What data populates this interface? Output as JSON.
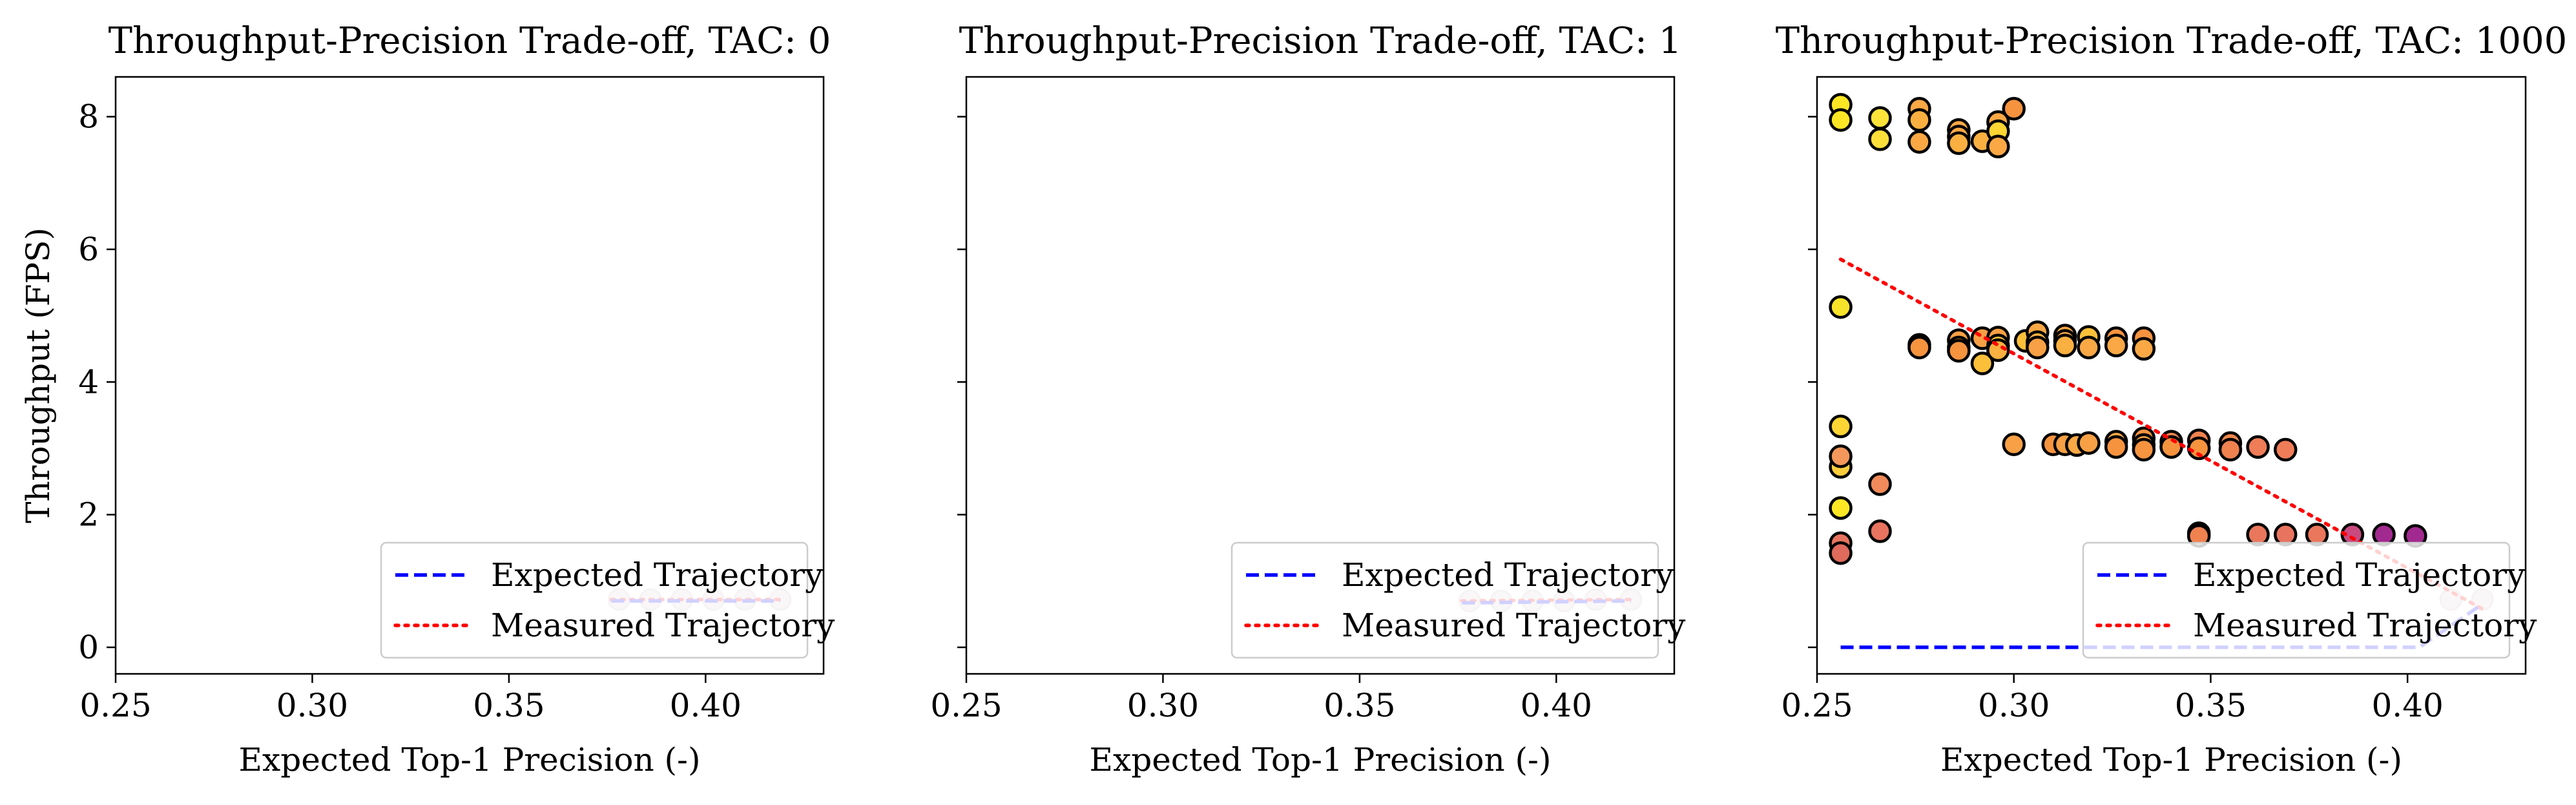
{
  "chart_data": [
    {
      "type": "scatter",
      "title": "Throughput-Precision Trade-off, TAC: 0",
      "xlabel": "Expected Top-1 Precision (-)",
      "ylabel": "Throughput (FPS)",
      "xlim": [
        0.25,
        0.43
      ],
      "ylim": [
        -0.4,
        8.6
      ],
      "xticks": [
        "0.25",
        "0.30",
        "0.35",
        "0.40"
      ],
      "yticks": [
        "0",
        "2",
        "4",
        "6",
        "8"
      ],
      "show_yticklabels": true,
      "legend_placement": "lower-right",
      "legend": [
        "Expected Trajectory",
        "Measured Trajectory"
      ],
      "points": [
        {
          "x": 0.378,
          "y": 0.72
        },
        {
          "x": 0.386,
          "y": 0.72
        },
        {
          "x": 0.394,
          "y": 0.72
        },
        {
          "x": 0.402,
          "y": 0.72
        },
        {
          "x": 0.41,
          "y": 0.72
        },
        {
          "x": 0.419,
          "y": 0.72
        }
      ],
      "expected_trajectory": [
        [
          0.376,
          0.7
        ],
        [
          0.419,
          0.7
        ]
      ],
      "measured_trajectory": [
        [
          0.376,
          0.72
        ],
        [
          0.419,
          0.72
        ]
      ]
    },
    {
      "type": "scatter",
      "title": "Throughput-Precision Trade-off, TAC: 1",
      "xlabel": "Expected Top-1 Precision (-)",
      "ylabel": "",
      "xlim": [
        0.25,
        0.43
      ],
      "ylim": [
        -0.4,
        8.6
      ],
      "xticks": [
        "0.25",
        "0.30",
        "0.35",
        "0.40"
      ],
      "yticks": [
        "0",
        "2",
        "4",
        "6",
        "8"
      ],
      "show_yticklabels": false,
      "legend_placement": "lower-right",
      "legend": [
        "Expected Trajectory",
        "Measured Trajectory"
      ],
      "points": [
        {
          "x": 0.378,
          "y": 0.7
        },
        {
          "x": 0.386,
          "y": 0.7
        },
        {
          "x": 0.394,
          "y": 0.7
        },
        {
          "x": 0.402,
          "y": 0.7
        },
        {
          "x": 0.41,
          "y": 0.72
        },
        {
          "x": 0.419,
          "y": 0.72
        }
      ],
      "expected_trajectory": [
        [
          0.376,
          0.67
        ],
        [
          0.419,
          0.7
        ]
      ],
      "measured_trajectory": [
        [
          0.376,
          0.7
        ],
        [
          0.419,
          0.72
        ]
      ]
    },
    {
      "type": "scatter",
      "title": "Throughput-Precision Trade-off, TAC: 1000",
      "xlabel": "Expected Top-1 Precision (-)",
      "ylabel": "",
      "xlim": [
        0.25,
        0.43
      ],
      "ylim": [
        -0.4,
        8.6
      ],
      "xticks": [
        "0.25",
        "0.30",
        "0.35",
        "0.40"
      ],
      "yticks": [
        "0",
        "2",
        "4",
        "6",
        "8"
      ],
      "show_yticklabels": false,
      "legend_placement": "lower-right",
      "legend": [
        "Expected Trajectory",
        "Measured Trajectory"
      ],
      "points": [
        {
          "x": 0.256,
          "y": 8.18,
          "c": "#fde725"
        },
        {
          "x": 0.256,
          "y": 7.95,
          "c": "#fde725"
        },
        {
          "x": 0.256,
          "y": 5.13,
          "c": "#f9e32a"
        },
        {
          "x": 0.256,
          "y": 3.33,
          "c": "#fcd434"
        },
        {
          "x": 0.256,
          "y": 2.72,
          "c": "#fbcd3c"
        },
        {
          "x": 0.256,
          "y": 2.88,
          "c": "#f3975a"
        },
        {
          "x": 0.256,
          "y": 2.1,
          "c": "#fde725"
        },
        {
          "x": 0.256,
          "y": 1.57,
          "c": "#e8735f"
        },
        {
          "x": 0.256,
          "y": 1.42,
          "c": "#e06a5c"
        },
        {
          "x": 0.266,
          "y": 7.98,
          "c": "#fde23a"
        },
        {
          "x": 0.266,
          "y": 7.66,
          "c": "#fcde3a"
        },
        {
          "x": 0.266,
          "y": 2.46,
          "c": "#f08a5a"
        },
        {
          "x": 0.266,
          "y": 1.75,
          "c": "#e8735f"
        },
        {
          "x": 0.276,
          "y": 8.12,
          "c": "#f9a845"
        },
        {
          "x": 0.276,
          "y": 7.95,
          "c": "#f9b040"
        },
        {
          "x": 0.276,
          "y": 7.62,
          "c": "#f9a845"
        },
        {
          "x": 0.276,
          "y": 4.56,
          "c": "#f5933f"
        },
        {
          "x": 0.276,
          "y": 4.52,
          "c": "#f5933f"
        },
        {
          "x": 0.286,
          "y": 7.8,
          "c": "#f9a845"
        },
        {
          "x": 0.286,
          "y": 7.7,
          "c": "#f9a845"
        },
        {
          "x": 0.286,
          "y": 7.6,
          "c": "#f9b040"
        },
        {
          "x": 0.286,
          "y": 4.63,
          "c": "#f7a045"
        },
        {
          "x": 0.286,
          "y": 4.52,
          "c": "#f5933f"
        },
        {
          "x": 0.286,
          "y": 4.47,
          "c": "#f5933f"
        },
        {
          "x": 0.292,
          "y": 7.63,
          "c": "#f9b040"
        },
        {
          "x": 0.292,
          "y": 4.28,
          "c": "#fbbf3a"
        },
        {
          "x": 0.292,
          "y": 4.66,
          "c": "#f7a045"
        },
        {
          "x": 0.296,
          "y": 7.92,
          "c": "#f9a845"
        },
        {
          "x": 0.296,
          "y": 7.78,
          "c": "#fcd434"
        },
        {
          "x": 0.296,
          "y": 7.55,
          "c": "#f9a845"
        },
        {
          "x": 0.296,
          "y": 4.67,
          "c": "#f7a045"
        },
        {
          "x": 0.296,
          "y": 4.55,
          "c": "#fbbf3a"
        },
        {
          "x": 0.296,
          "y": 4.48,
          "c": "#f9b040"
        },
        {
          "x": 0.3,
          "y": 8.12,
          "c": "#f5933f"
        },
        {
          "x": 0.3,
          "y": 3.06,
          "c": "#f7a045"
        },
        {
          "x": 0.303,
          "y": 4.62,
          "c": "#fbbf3a"
        },
        {
          "x": 0.306,
          "y": 4.75,
          "c": "#f9a845"
        },
        {
          "x": 0.306,
          "y": 4.6,
          "c": "#f9b040"
        },
        {
          "x": 0.306,
          "y": 4.52,
          "c": "#f7a045"
        },
        {
          "x": 0.31,
          "y": 3.06,
          "c": "#f5933f"
        },
        {
          "x": 0.313,
          "y": 3.06,
          "c": "#f7a045"
        },
        {
          "x": 0.313,
          "y": 4.7,
          "c": "#f9a845"
        },
        {
          "x": 0.313,
          "y": 4.62,
          "c": "#f9a845"
        },
        {
          "x": 0.313,
          "y": 4.55,
          "c": "#f9b040"
        },
        {
          "x": 0.316,
          "y": 3.05,
          "c": "#f9a845"
        },
        {
          "x": 0.319,
          "y": 3.08,
          "c": "#f7a045"
        },
        {
          "x": 0.319,
          "y": 4.68,
          "c": "#fbbf3a"
        },
        {
          "x": 0.319,
          "y": 4.52,
          "c": "#f9a845"
        },
        {
          "x": 0.326,
          "y": 4.66,
          "c": "#f5933f"
        },
        {
          "x": 0.326,
          "y": 4.55,
          "c": "#f9a845"
        },
        {
          "x": 0.326,
          "y": 3.1,
          "c": "#f9a845"
        },
        {
          "x": 0.326,
          "y": 3.02,
          "c": "#f5933f"
        },
        {
          "x": 0.333,
          "y": 4.66,
          "c": "#f5933f"
        },
        {
          "x": 0.333,
          "y": 4.5,
          "c": "#f9a845"
        },
        {
          "x": 0.333,
          "y": 3.15,
          "c": "#f5933f"
        },
        {
          "x": 0.333,
          "y": 3.05,
          "c": "#f7a045"
        },
        {
          "x": 0.333,
          "y": 2.98,
          "c": "#f5933f"
        },
        {
          "x": 0.34,
          "y": 3.1,
          "c": "#f0874d"
        },
        {
          "x": 0.34,
          "y": 3.02,
          "c": "#f5933f"
        },
        {
          "x": 0.347,
          "y": 3.12,
          "c": "#f08250"
        },
        {
          "x": 0.347,
          "y": 3.0,
          "c": "#f5933f"
        },
        {
          "x": 0.347,
          "y": 1.72,
          "c": "#e8735f"
        },
        {
          "x": 0.347,
          "y": 1.68,
          "c": "#f08250"
        },
        {
          "x": 0.355,
          "y": 3.08,
          "c": "#f0874d"
        },
        {
          "x": 0.355,
          "y": 2.98,
          "c": "#f08250"
        },
        {
          "x": 0.362,
          "y": 3.02,
          "c": "#ef7d58"
        },
        {
          "x": 0.362,
          "y": 1.7,
          "c": "#ea775c"
        },
        {
          "x": 0.369,
          "y": 2.98,
          "c": "#ef7d58"
        },
        {
          "x": 0.369,
          "y": 1.7,
          "c": "#e8735f"
        },
        {
          "x": 0.377,
          "y": 1.7,
          "c": "#ea775c"
        },
        {
          "x": 0.386,
          "y": 1.7,
          "c": "#c94a80"
        },
        {
          "x": 0.394,
          "y": 1.7,
          "c": "#a2298f"
        },
        {
          "x": 0.402,
          "y": 1.68,
          "c": "#a2298f"
        },
        {
          "x": 0.411,
          "y": 0.72,
          "c": "#e0d0d8"
        },
        {
          "x": 0.419,
          "y": 0.72,
          "c": "#e0d0d8"
        }
      ],
      "expected_trajectory": [
        [
          0.256,
          0.0
        ],
        [
          0.403,
          0.0
        ],
        [
          0.419,
          0.65
        ]
      ],
      "measured_trajectory": [
        [
          0.256,
          5.85
        ],
        [
          0.419,
          0.58
        ]
      ]
    }
  ]
}
